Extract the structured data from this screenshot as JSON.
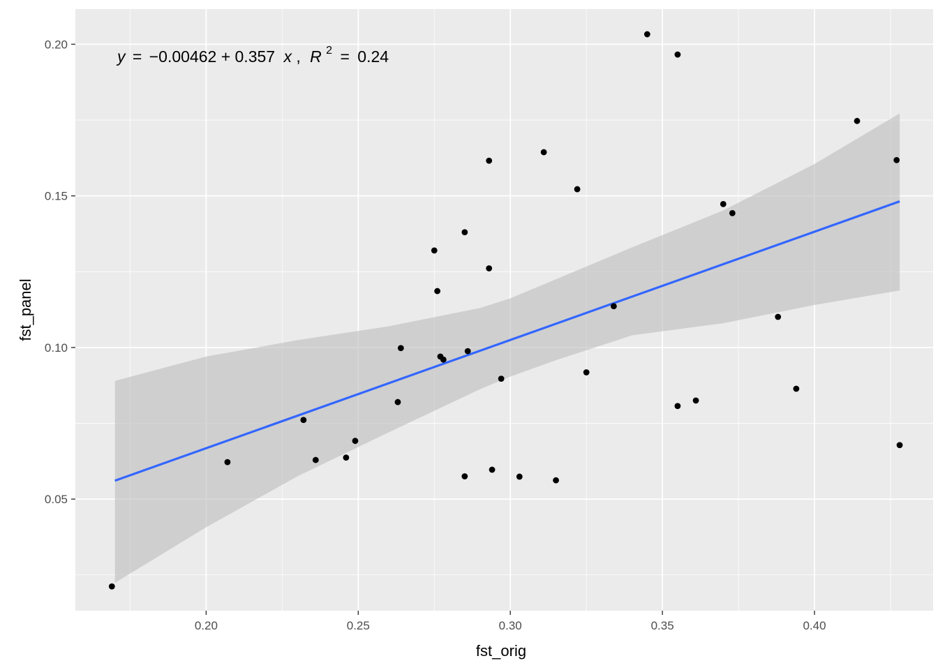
{
  "chart_data": {
    "type": "scatter",
    "xlabel": "fst_orig",
    "ylabel": "fst_panel",
    "xlim": [
      0.157,
      0.439
    ],
    "ylim": [
      0.0132,
      0.2116
    ],
    "x_ticks": [
      0.2,
      0.25,
      0.3,
      0.35,
      0.4
    ],
    "x_tick_labels": [
      "0.20",
      "0.25",
      "0.30",
      "0.35",
      "0.40"
    ],
    "y_ticks": [
      0.05,
      0.1,
      0.15,
      0.2
    ],
    "y_tick_labels": [
      "0.05",
      "0.10",
      "0.15",
      "0.20"
    ],
    "grid": true,
    "annotation": {
      "y_var": "y",
      "equals": "=",
      "intercept_term": "−0.00462",
      "plus": "+",
      "slope_term": "0.357",
      "x_var": "x",
      "comma": ",",
      "r2_var": "R",
      "r2_exp": "2",
      "r2_equals": "=",
      "r2_value": "0.24"
    },
    "fit": {
      "intercept": -0.00462,
      "slope": 0.357,
      "color": "#3366FF",
      "ci_color": "#BDBDBD",
      "x": [
        0.17,
        0.2,
        0.23,
        0.26,
        0.29,
        0.3,
        0.315,
        0.34,
        0.37,
        0.4,
        0.428
      ],
      "ci_upper": [
        0.089,
        0.097,
        0.1024,
        0.107,
        0.113,
        0.1162,
        0.1225,
        0.133,
        0.1452,
        0.1605,
        0.1772
      ],
      "ci_lower": [
        0.0224,
        0.0407,
        0.0575,
        0.072,
        0.0862,
        0.0904,
        0.0958,
        0.104,
        0.108,
        0.114,
        0.1188
      ]
    },
    "points": [
      {
        "x": 0.169,
        "y": 0.0212
      },
      {
        "x": 0.207,
        "y": 0.0622
      },
      {
        "x": 0.232,
        "y": 0.0761
      },
      {
        "x": 0.236,
        "y": 0.0629
      },
      {
        "x": 0.246,
        "y": 0.0637
      },
      {
        "x": 0.249,
        "y": 0.0692
      },
      {
        "x": 0.263,
        "y": 0.082
      },
      {
        "x": 0.264,
        "y": 0.0998
      },
      {
        "x": 0.275,
        "y": 0.132
      },
      {
        "x": 0.276,
        "y": 0.1186
      },
      {
        "x": 0.277,
        "y": 0.097
      },
      {
        "x": 0.278,
        "y": 0.096
      },
      {
        "x": 0.285,
        "y": 0.138
      },
      {
        "x": 0.285,
        "y": 0.0575
      },
      {
        "x": 0.286,
        "y": 0.0988
      },
      {
        "x": 0.293,
        "y": 0.1261
      },
      {
        "x": 0.293,
        "y": 0.1616
      },
      {
        "x": 0.294,
        "y": 0.0597
      },
      {
        "x": 0.297,
        "y": 0.0897
      },
      {
        "x": 0.303,
        "y": 0.0574
      },
      {
        "x": 0.311,
        "y": 0.1644
      },
      {
        "x": 0.315,
        "y": 0.0562
      },
      {
        "x": 0.322,
        "y": 0.1522
      },
      {
        "x": 0.325,
        "y": 0.0918
      },
      {
        "x": 0.334,
        "y": 0.1136
      },
      {
        "x": 0.345,
        "y": 0.2033
      },
      {
        "x": 0.355,
        "y": 0.1966
      },
      {
        "x": 0.355,
        "y": 0.0807
      },
      {
        "x": 0.361,
        "y": 0.0825
      },
      {
        "x": 0.37,
        "y": 0.1473
      },
      {
        "x": 0.373,
        "y": 0.1443
      },
      {
        "x": 0.388,
        "y": 0.1101
      },
      {
        "x": 0.394,
        "y": 0.0864
      },
      {
        "x": 0.414,
        "y": 0.1747
      },
      {
        "x": 0.427,
        "y": 0.1618
      },
      {
        "x": 0.428,
        "y": 0.0678
      }
    ],
    "colors": {
      "panel_background": "#EBEBEB",
      "grid_major": "#FFFFFF",
      "point": "#000000"
    }
  }
}
